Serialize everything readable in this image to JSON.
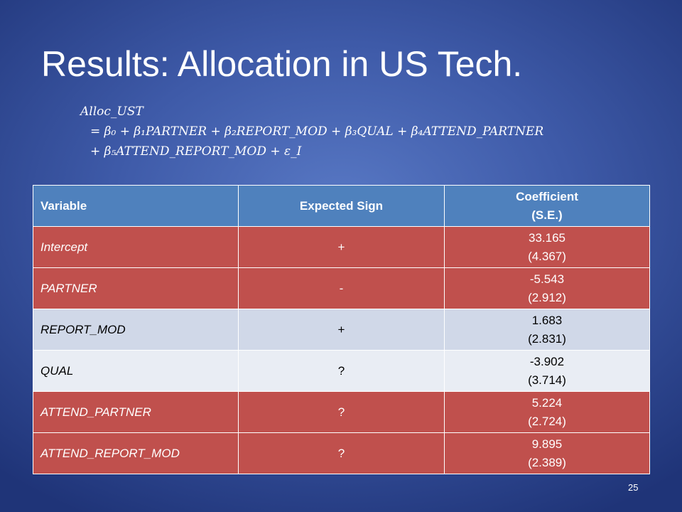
{
  "slide": {
    "title": "Results: Allocation in US Tech.",
    "equation": {
      "line1": "Alloc_UST",
      "line2": "= β₀ + β₁PARTNER + β₂REPORT_MOD + β₃QUAL + β₄ATTEND_PARTNER",
      "line3": "+ β₅ATTEND_REPORT_MOD + ε_I"
    },
    "page_number": "25"
  },
  "table": {
    "headers": {
      "variable": "Variable",
      "expected_sign": "Expected Sign",
      "coefficient": "Coefficient",
      "se": "(S.E.)"
    },
    "rows": [
      {
        "variable": "Intercept",
        "sign": "+",
        "coef": "33.165",
        "se": "(4.367)",
        "style": "red"
      },
      {
        "variable": "PARTNER",
        "sign": "-",
        "coef": "-5.543",
        "se": "(2.912)",
        "style": "red"
      },
      {
        "variable": "REPORT_MOD",
        "sign": "+",
        "coef": "1.683",
        "se": "(2.831)",
        "style": "light1"
      },
      {
        "variable": "QUAL",
        "sign": "?",
        "coef": "-3.902",
        "se": "(3.714)",
        "style": "light2"
      },
      {
        "variable": "ATTEND_PARTNER",
        "sign": "?",
        "coef": "5.224",
        "se": "(2.724)",
        "style": "red"
      },
      {
        "variable": "ATTEND_REPORT_MOD",
        "sign": "?",
        "coef": "9.895",
        "se": "(2.389)",
        "style": "red"
      }
    ]
  },
  "colors": {
    "header_blue": "#4f81bd",
    "row_red": "#c0504d",
    "row_light_1": "#d0d8e8",
    "row_light_2": "#e9edf4"
  }
}
